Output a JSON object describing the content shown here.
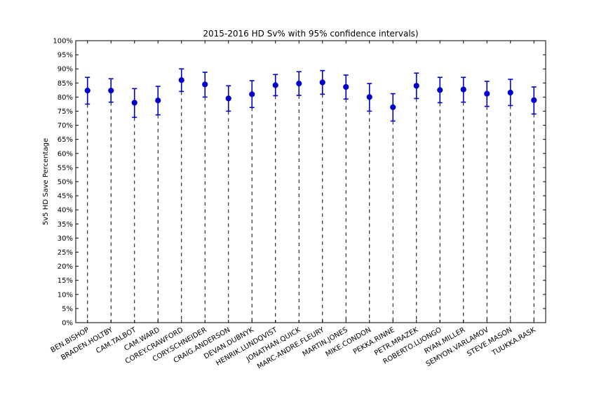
{
  "chart_data": {
    "type": "scatter",
    "title": "2015-2016 HD Sv% with 95% confidence intervals)",
    "xlabel": "",
    "ylabel": "5v5 HD Save Percentage",
    "ylim": [
      0,
      100
    ],
    "yticks": [
      "0%",
      "5%",
      "10%",
      "15%",
      "20%",
      "25%",
      "30%",
      "35%",
      "40%",
      "45%",
      "50%",
      "55%",
      "60%",
      "65%",
      "70%",
      "75%",
      "80%",
      "85%",
      "90%",
      "95%",
      "100%"
    ],
    "categories": [
      "BEN.BISHOP",
      "BRADEN.HOLTBY",
      "CAM.TALBOT",
      "CAM.WARD",
      "COREY.CRAWFORD",
      "CORY.SCHNEIDER",
      "CRAIG.ANDERSON",
      "DEVAN.DUBNYK",
      "HENRIK.LUNDQVIST",
      "JONATHAN.QUICK",
      "MARC-ANDRE.FLEURY",
      "MARTIN.JONES",
      "MIKE.CONDON",
      "PEKKA.RINNE",
      "PETR.MRAZEK",
      "ROBERTO.LUONGO",
      "RYAN.MILLER",
      "SEMYON.VARLAMOV",
      "STEVE.MASON",
      "TUUKKA.RASK"
    ],
    "values": [
      82.3,
      82.3,
      78.0,
      78.8,
      86.0,
      84.5,
      79.5,
      81.0,
      84.2,
      84.8,
      85.2,
      83.6,
      80.0,
      76.4,
      84.0,
      82.5,
      82.7,
      81.2,
      81.6,
      78.9
    ],
    "lower": [
      77.5,
      78.2,
      72.8,
      73.7,
      82.0,
      80.0,
      75.0,
      76.3,
      80.5,
      80.6,
      81.0,
      79.3,
      75.0,
      71.5,
      79.5,
      78.0,
      78.2,
      76.7,
      77.0,
      74.0
    ],
    "upper": [
      87.0,
      86.5,
      83.0,
      83.8,
      90.0,
      88.8,
      84.0,
      85.8,
      88.0,
      89.0,
      89.4,
      87.8,
      84.8,
      81.2,
      88.5,
      87.0,
      87.0,
      85.6,
      86.3,
      83.6
    ],
    "marker_color": "#0000cc",
    "drop_line_color": "#000000",
    "grid": false,
    "legend": "none"
  }
}
